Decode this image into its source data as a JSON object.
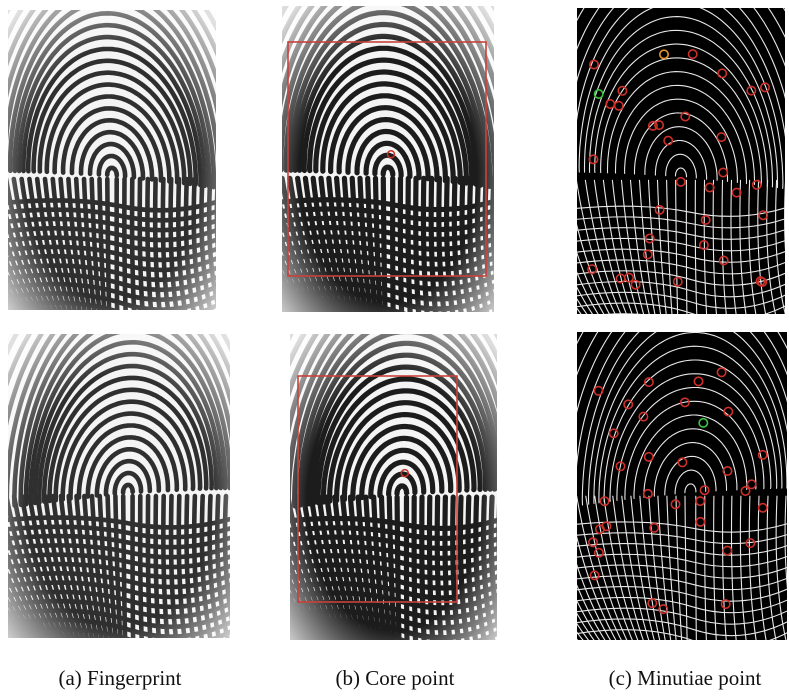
{
  "figure": {
    "captions": [
      {
        "label": "(a) Fingerprint"
      },
      {
        "label": "(b) Core point"
      },
      {
        "label": "(c) Minutiae point"
      }
    ]
  },
  "colors": {
    "ink_light_gray": "#2f2f2f",
    "ink_dark": "#1c1c1c",
    "paper": "#f4f4f4",
    "skeleton_bg": "#000000",
    "skeleton_line": "#e8e8e8",
    "marker_red": "#d0302a",
    "marker_green": "#39c43a",
    "marker_orange": "#e8902a",
    "roi_box": "#c8413b"
  },
  "panels": [
    {
      "row": "top",
      "column": "fingerprint",
      "style": "light"
    },
    {
      "row": "top",
      "column": "core-point",
      "style": "dark",
      "has_core_marker": true,
      "has_roi_box": true
    },
    {
      "row": "top",
      "column": "minutiae",
      "style": "skeleton",
      "markers": {
        "red_count": 33,
        "green_count": 1,
        "orange_count": 1
      }
    },
    {
      "row": "bottom",
      "column": "fingerprint",
      "style": "light"
    },
    {
      "row": "bottom",
      "column": "core-point",
      "style": "dark",
      "has_core_marker": true,
      "has_roi_box": true
    },
    {
      "row": "bottom",
      "column": "minutiae",
      "style": "skeleton",
      "markers": {
        "red_count": 34,
        "green_count": 1
      }
    }
  ]
}
